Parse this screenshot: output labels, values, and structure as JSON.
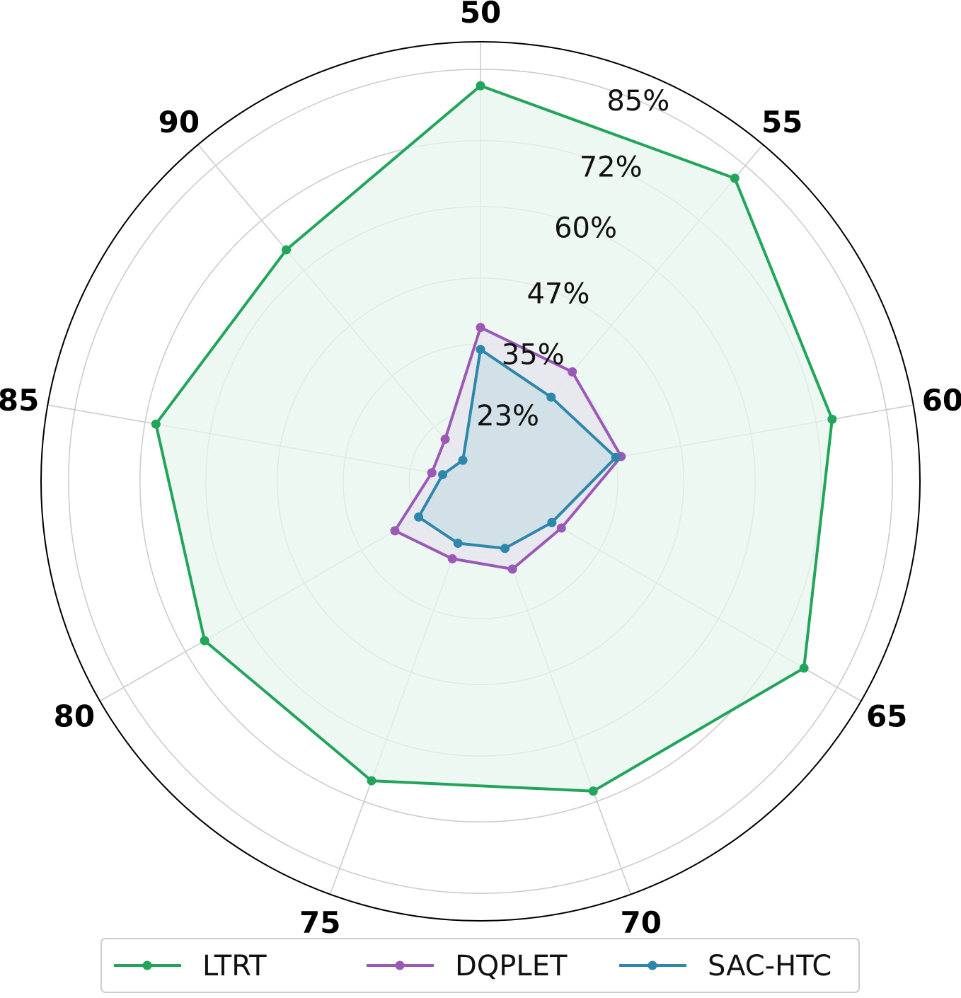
{
  "chart_data": {
    "type": "radar",
    "categories": [
      "50",
      "55",
      "60",
      "65",
      "70",
      "75",
      "80",
      "85",
      "90"
    ],
    "radial_ticks": [
      {
        "value": 23,
        "label": "23%"
      },
      {
        "value": 35,
        "label": "35%"
      },
      {
        "value": 47,
        "label": "47%"
      },
      {
        "value": 60,
        "label": "60%"
      },
      {
        "value": 72,
        "label": "72%"
      },
      {
        "value": 85,
        "label": "85%"
      }
    ],
    "rlim": [
      10,
      90
    ],
    "grid": true,
    "legend_position": "bottom",
    "series": [
      {
        "name": "LTRT",
        "color": "#22a55b",
        "fill": "#e8f6ee",
        "values": [
          82,
          82,
          75,
          78,
          70,
          68,
          68,
          70,
          65
        ]
      },
      {
        "name": "DQPLET",
        "color": "#9b59b6",
        "fill": "#e6e4ee",
        "values": [
          38,
          36,
          36,
          27,
          27,
          25,
          28,
          19,
          20
        ]
      },
      {
        "name": "SAC-HTC",
        "color": "#2e86ab",
        "fill": "#cbdde5",
        "values": [
          34,
          30,
          35,
          25,
          23,
          22,
          23,
          17,
          15
        ]
      }
    ]
  }
}
